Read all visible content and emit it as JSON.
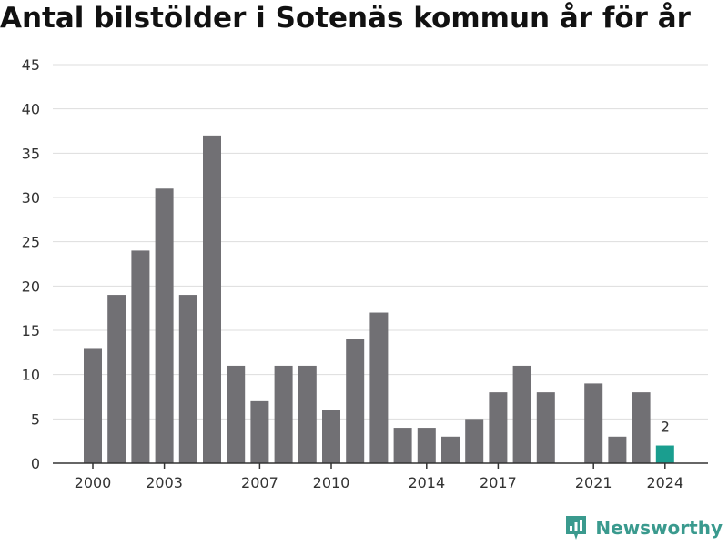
{
  "title": "Antal bilstölder i Sotenäs kommun år för år",
  "brand": {
    "name": "Newsworthy",
    "icon": "newsworthy-logo-icon",
    "color": "#3a9a8e"
  },
  "colors": {
    "bar": "#717074",
    "highlight": "#1a9e8f",
    "grid": "#dddddd",
    "axis": "#333333"
  },
  "chart_data": {
    "type": "bar",
    "title": "Antal bilstölder i Sotenäs kommun år för år",
    "xlabel": "",
    "ylabel": "",
    "categories": [
      "2000",
      "2001",
      "2002",
      "2003",
      "2004",
      "2005",
      "2006",
      "2007",
      "2008",
      "2009",
      "2010",
      "2011",
      "2012",
      "2013",
      "2014",
      "2015",
      "2016",
      "2017",
      "2018",
      "2019",
      "2020",
      "2021",
      "2022",
      "2023",
      "2024"
    ],
    "values": [
      13,
      19,
      24,
      31,
      19,
      37,
      11,
      7,
      11,
      11,
      6,
      14,
      17,
      4,
      4,
      3,
      5,
      8,
      11,
      8,
      null,
      9,
      3,
      8,
      2
    ],
    "highlight_category": "2024",
    "highlight_label": "2",
    "x_tick_labels": [
      "2000",
      "2003",
      "2007",
      "2010",
      "2014",
      "2017",
      "2021",
      "2024"
    ],
    "y_ticks": [
      0,
      5,
      10,
      15,
      20,
      25,
      30,
      35,
      40,
      45
    ],
    "ylim": [
      0,
      45
    ],
    "grid": true,
    "legend": "none"
  }
}
